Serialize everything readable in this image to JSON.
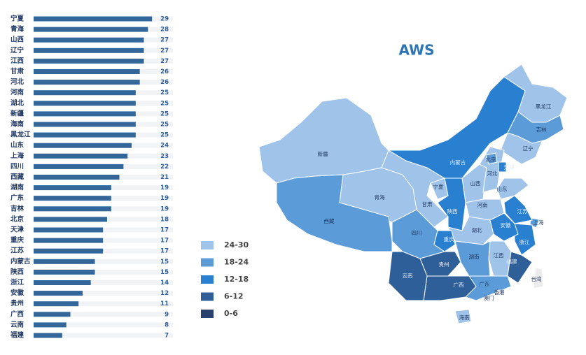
{
  "chart_data": [
    {
      "type": "hbar",
      "categories": [
        "宁夏",
        "青海",
        "山西",
        "辽宁",
        "江西",
        "甘肃",
        "河北",
        "河南",
        "湖北",
        "新疆",
        "海南",
        "黑龙江",
        "山东",
        "上海",
        "四川",
        "西藏",
        "湖南",
        "广东",
        "吉林",
        "北京",
        "天津",
        "重庆",
        "江苏",
        "内蒙古",
        "陕西",
        "浙江",
        "安徽",
        "贵州",
        "广西",
        "云南",
        "福建"
      ],
      "values": [
        29,
        28,
        27,
        27,
        27,
        26,
        26,
        25,
        25,
        25,
        25,
        25,
        24,
        23,
        22,
        21,
        19,
        19,
        19,
        18,
        17,
        17,
        17,
        15,
        15,
        14,
        12,
        11,
        9,
        8,
        7
      ],
      "xlim": [
        0,
        30
      ],
      "color": "#336699"
    },
    {
      "type": "choropleth",
      "title": "AWS",
      "regions": [
        "宁夏",
        "青海",
        "山西",
        "辽宁",
        "江西",
        "甘肃",
        "河北",
        "河南",
        "湖北",
        "新疆",
        "海南",
        "黑龙江",
        "山东",
        "上海",
        "四川",
        "西藏",
        "湖南",
        "广东",
        "吉林",
        "北京",
        "天津",
        "重庆",
        "江苏",
        "内蒙古",
        "陕西",
        "浙江",
        "安徽",
        "贵州",
        "广西",
        "云南",
        "福建",
        "台湾",
        "香港",
        "澳门"
      ],
      "values": [
        29,
        28,
        27,
        27,
        27,
        26,
        26,
        25,
        25,
        25,
        25,
        25,
        24,
        23,
        22,
        21,
        19,
        19,
        19,
        18,
        17,
        17,
        17,
        15,
        15,
        14,
        12,
        11,
        9,
        8,
        7,
        null,
        null,
        null
      ],
      "legend": [
        {
          "label": "24-30",
          "min": 24,
          "max": 30,
          "color": "#9fc3e9"
        },
        {
          "label": "18-24",
          "min": 18,
          "max": 24,
          "color": "#5a9bd8"
        },
        {
          "label": "12-18",
          "min": 12,
          "max": 18,
          "color": "#2a80d0"
        },
        {
          "label": "6-12",
          "min": 6,
          "max": 12,
          "color": "#2f5f99"
        },
        {
          "label": "0-6",
          "min": 0,
          "max": 6,
          "color": "#2b416e"
        }
      ],
      "no_data_color": "#ececec"
    }
  ]
}
